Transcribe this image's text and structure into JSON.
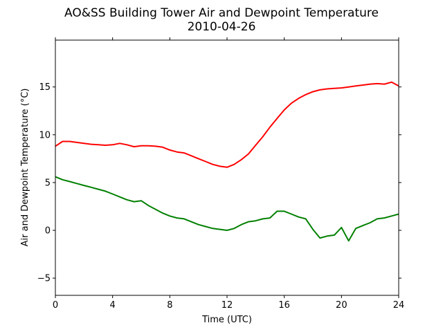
{
  "chart_data": {
    "type": "line",
    "title": "AO&SS Building Tower Air and Dewpoint Temperature",
    "subtitle": "2010-04-26",
    "xlabel": "Time (UTC)",
    "ylabel": "Air and Dewpoint Temperature (°C)",
    "xlim": [
      0,
      24
    ],
    "ylim": [
      -6.8,
      19.9
    ],
    "xticks": [
      0,
      4,
      8,
      12,
      16,
      20,
      24
    ],
    "yticks": [
      -5,
      0,
      5,
      10,
      15
    ],
    "grid": false,
    "series": [
      {
        "color": "#ff0000",
        "x": [
          0,
          0.5,
          1,
          1.5,
          2,
          2.5,
          3,
          3.5,
          4,
          4.5,
          5,
          5.5,
          6,
          6.5,
          7,
          7.5,
          8,
          8.5,
          9,
          9.5,
          10,
          10.5,
          11,
          11.5,
          12,
          12.5,
          13,
          13.5,
          14,
          14.5,
          15,
          15.5,
          16,
          16.5,
          17,
          17.5,
          18,
          18.5,
          19,
          19.5,
          20,
          20.5,
          21,
          21.5,
          22,
          22.5,
          23,
          23.5,
          24
        ],
        "y": [
          8.8,
          9.3,
          9.3,
          9.2,
          9.1,
          9.0,
          8.95,
          8.9,
          8.95,
          9.1,
          8.95,
          8.75,
          8.85,
          8.85,
          8.8,
          8.7,
          8.4,
          8.2,
          8.1,
          7.8,
          7.5,
          7.2,
          6.9,
          6.7,
          6.6,
          6.9,
          7.4,
          8.0,
          8.9,
          9.8,
          10.8,
          11.7,
          12.6,
          13.3,
          13.8,
          14.2,
          14.5,
          14.7,
          14.8,
          14.85,
          14.9,
          15.0,
          15.1,
          15.2,
          15.3,
          15.35,
          15.3,
          15.5,
          15.1
        ]
      },
      {
        "color": "#008000",
        "x": [
          0,
          0.5,
          1,
          1.5,
          2,
          2.5,
          3,
          3.5,
          4,
          4.5,
          5,
          5.5,
          6,
          6.5,
          7,
          7.5,
          8,
          8.5,
          9,
          9.5,
          10,
          10.5,
          11,
          11.5,
          12,
          12.5,
          13,
          13.5,
          14,
          14.5,
          15,
          15.5,
          16,
          16.5,
          17,
          17.5,
          18,
          18.5,
          19,
          19.5,
          20,
          20.5,
          21,
          21.5,
          22,
          22.5,
          23,
          23.5,
          24
        ],
        "y": [
          5.6,
          5.3,
          5.1,
          4.9,
          4.7,
          4.5,
          4.3,
          4.1,
          3.8,
          3.5,
          3.2,
          3.0,
          3.1,
          2.6,
          2.2,
          1.8,
          1.5,
          1.3,
          1.2,
          0.9,
          0.6,
          0.4,
          0.2,
          0.1,
          0.0,
          0.2,
          0.6,
          0.9,
          1.0,
          1.2,
          1.3,
          2.0,
          2.0,
          1.7,
          1.4,
          1.2,
          0.1,
          -0.8,
          -0.6,
          -0.5,
          0.3,
          -1.1,
          0.2,
          0.5,
          0.8,
          1.2,
          1.3,
          1.5,
          1.7
        ]
      }
    ]
  }
}
